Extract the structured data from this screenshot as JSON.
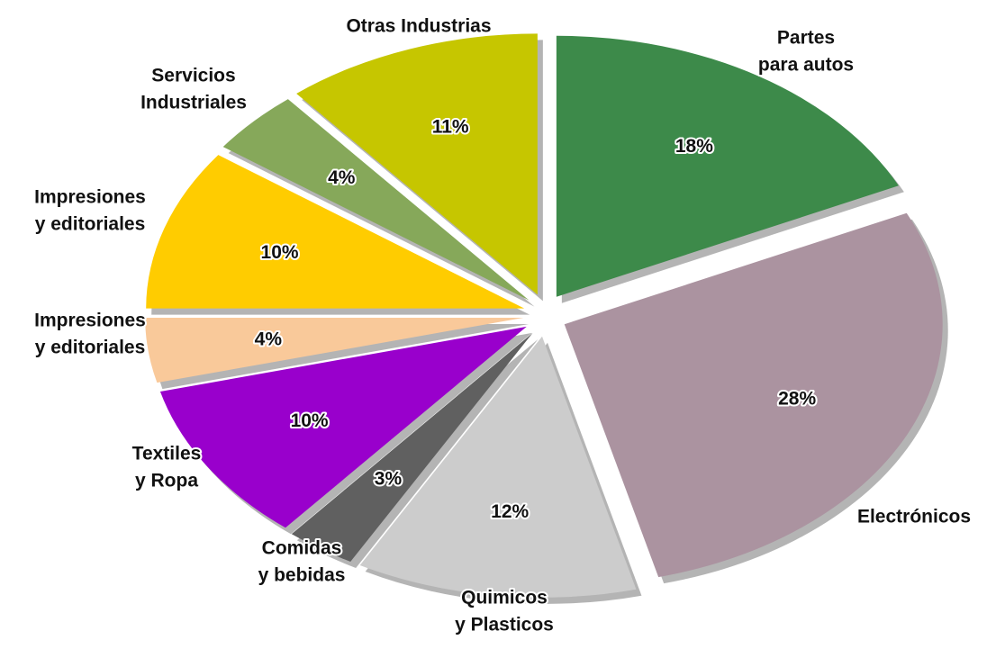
{
  "chart_data": {
    "type": "pie",
    "categories": [
      [
        "Partes",
        "para autos"
      ],
      [
        "Electrónicos"
      ],
      [
        "Quimicos",
        "y Plasticos"
      ],
      [
        "Comidas",
        "y bebidas"
      ],
      [
        "Textiles",
        "y Ropa"
      ],
      [
        "Impresiones",
        "y editoriales"
      ],
      [
        "Impresiones",
        "y editoriales"
      ],
      [
        "Servicios",
        "Industriales"
      ],
      [
        "Otras Industrias"
      ]
    ],
    "values": [
      18,
      28,
      12,
      3,
      10,
      4,
      10,
      4,
      11
    ],
    "value_labels": [
      "18%",
      "28%",
      "12%",
      "3%",
      "10%",
      "4%",
      "10%",
      "4%",
      "11%"
    ],
    "colors": [
      "#3d8a4a",
      "#ab93a0",
      "#cccccc",
      "#606060",
      "#9900cc",
      "#f9c99a",
      "#ffcc00",
      "#86a85a",
      "#c6c600"
    ]
  }
}
